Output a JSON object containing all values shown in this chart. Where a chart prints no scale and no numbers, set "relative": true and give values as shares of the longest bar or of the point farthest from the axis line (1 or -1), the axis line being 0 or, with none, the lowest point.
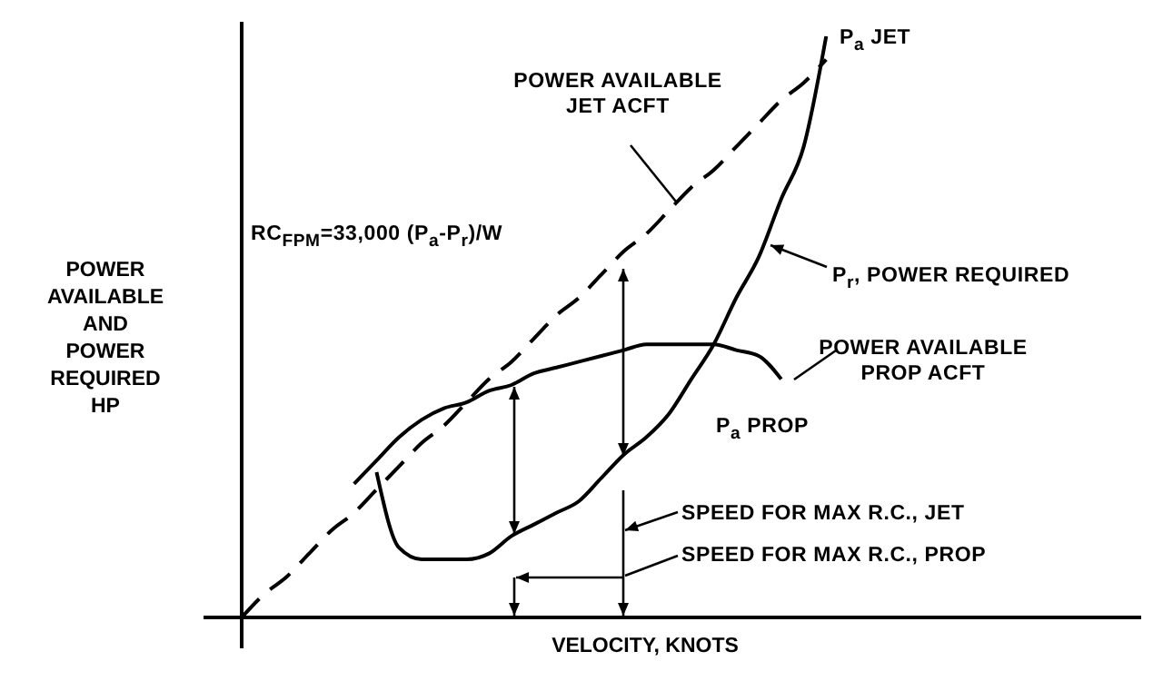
{
  "chart_data": {
    "type": "line",
    "relative": true,
    "xlabel": "VELOCITY, KNOTS",
    "ylabel": "POWER AVAILABLE AND POWER REQUIRED HP",
    "legend": false,
    "grid": false,
    "marker": "none",
    "categories": [
      null,
      null,
      null,
      null,
      null,
      null,
      null,
      null,
      null,
      null,
      null,
      null,
      null,
      null,
      null,
      null,
      null,
      null,
      null,
      null,
      null,
      null,
      null,
      null,
      null,
      null,
      null,
      null
    ],
    "series": [
      {
        "name": "P$_{a}$ JET",
        "color": "#000000",
        "line_style": "dashed",
        "values": [
          0,
          0.04,
          0.07,
          0.11,
          0.15,
          0.18,
          0.22,
          0.26,
          0.3,
          0.33,
          0.37,
          0.41,
          0.44,
          0.48,
          0.52,
          0.55,
          0.59,
          0.63,
          0.66,
          0.7,
          0.74,
          0.77,
          0.81,
          0.85,
          0.89,
          0.92,
          0.96,
          null
        ]
      },
      {
        "name": "P$_{r}$, POWER REQUIRED",
        "color": "#000000",
        "line_style": "solid",
        "values": [
          null,
          null,
          null,
          null,
          null,
          null,
          0.25,
          0.12,
          0.1,
          0.1,
          0.1,
          0.11,
          0.14,
          0.16,
          0.18,
          0.2,
          0.24,
          0.28,
          0.31,
          0.35,
          0.41,
          0.47,
          0.55,
          0.62,
          0.72,
          0.81,
          1.0,
          null
        ]
      },
      {
        "name": "P$_{a}$ PROP",
        "color": "#000000",
        "line_style": "solid",
        "values": [
          null,
          null,
          null,
          null,
          null,
          0.23,
          0.27,
          0.31,
          0.34,
          0.36,
          0.37,
          0.39,
          0.4,
          0.42,
          0.43,
          0.44,
          0.45,
          0.46,
          0.47,
          0.47,
          0.47,
          0.47,
          0.46,
          0.45,
          0.41,
          null,
          null,
          null
        ]
      }
    ],
    "annotations": [
      "POWER AVAILABLE JET ACFT",
      "RC$_{FPM}$=33,000 (P$_{a}$-P$_{r}$)/W",
      "POWER AVAILABLE PROP ACFT",
      "SPEED FOR MAX R.C., JET",
      "SPEED FOR MAX R.C., PROP"
    ]
  }
}
